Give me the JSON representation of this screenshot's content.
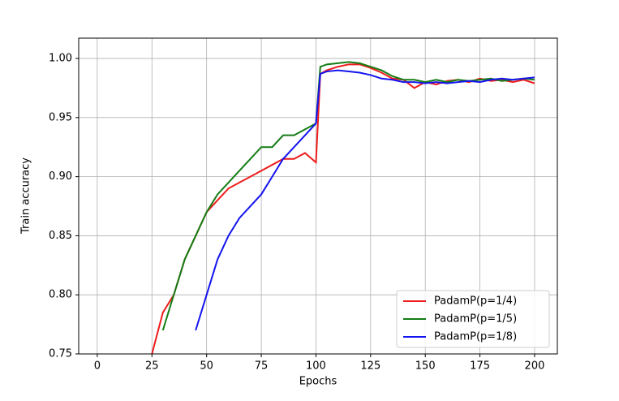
{
  "chart_data": {
    "type": "line",
    "xlabel": "Epochs",
    "ylabel": "Train accuracy",
    "x": [
      25,
      30,
      35,
      40,
      45,
      50,
      55,
      60,
      65,
      70,
      75,
      80,
      85,
      90,
      95,
      100,
      102,
      105,
      110,
      115,
      120,
      125,
      130,
      135,
      140,
      145,
      150,
      155,
      160,
      165,
      170,
      175,
      180,
      185,
      190,
      195,
      200
    ],
    "series": [
      {
        "name": "PadamP(p=1/4)",
        "color": "#ee1c1c",
        "values": [
          0.75,
          0.785,
          0.8,
          0.83,
          0.85,
          0.87,
          0.88,
          0.89,
          0.895,
          0.9,
          0.905,
          0.91,
          0.915,
          0.915,
          0.92,
          0.912,
          0.987,
          0.99,
          0.993,
          0.995,
          0.995,
          0.992,
          0.988,
          0.983,
          0.982,
          0.975,
          0.98,
          0.978,
          0.981,
          0.982,
          0.98,
          0.983,
          0.981,
          0.982,
          0.98,
          0.982,
          0.979
        ]
      },
      {
        "name": "PadamP(p=1/5)",
        "color": "#147d14",
        "values": [
          null,
          0.77,
          0.8,
          0.83,
          0.85,
          0.87,
          0.885,
          0.895,
          0.905,
          0.915,
          0.925,
          0.925,
          0.935,
          0.935,
          0.94,
          0.945,
          0.993,
          0.995,
          0.996,
          0.997,
          0.996,
          0.993,
          0.99,
          0.985,
          0.982,
          0.982,
          0.98,
          0.982,
          0.98,
          0.982,
          0.981,
          0.982,
          0.983,
          0.981,
          0.982,
          0.983,
          0.982
        ]
      },
      {
        "name": "PadamP(p=1/8)",
        "color": "#1414f0",
        "values": [
          null,
          null,
          null,
          null,
          0.77,
          0.8,
          0.83,
          0.85,
          0.865,
          0.875,
          0.885,
          0.9,
          0.915,
          0.925,
          0.935,
          0.945,
          0.987,
          0.989,
          0.99,
          0.989,
          0.988,
          0.986,
          0.983,
          0.982,
          0.98,
          0.98,
          0.979,
          0.98,
          0.979,
          0.98,
          0.981,
          0.98,
          0.982,
          0.983,
          0.982,
          0.983,
          0.984
        ]
      }
    ],
    "xlim": [
      -8.5,
      210.4
    ],
    "ylim": [
      0.75,
      1.0172
    ],
    "xticks": [
      0,
      25,
      50,
      75,
      100,
      125,
      150,
      175,
      200
    ],
    "yticks": [
      0.75,
      {
        "value": 0.8,
        "label": "0.80"
      },
      0.85,
      {
        "value": 0.9,
        "label": "0.90"
      },
      0.95,
      {
        "value": 1.0,
        "label": "1.00"
      }
    ],
    "grid": true,
    "legend": "lower right"
  }
}
